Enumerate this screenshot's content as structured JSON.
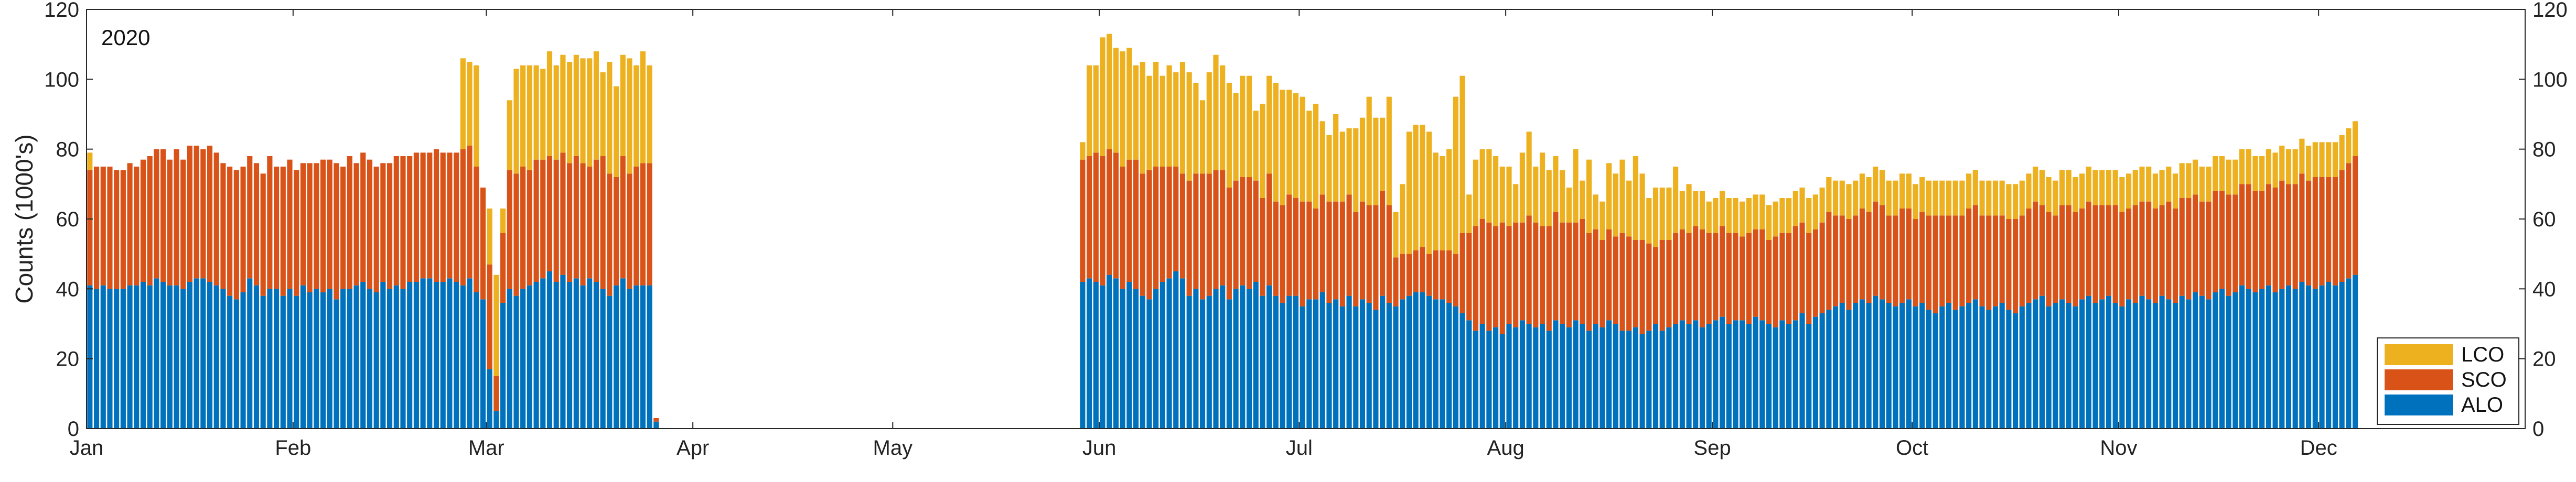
{
  "chart_data": {
    "type": "bar",
    "stacked": true,
    "year_label": "2020",
    "ylabel": "Counts (1000's)",
    "ylim": [
      0,
      120
    ],
    "yticks": [
      0,
      20,
      40,
      60,
      80,
      100,
      120
    ],
    "ytick_labels": [
      "0",
      "20",
      "40",
      "60",
      "80",
      "100",
      "120"
    ],
    "right_axis_ticks": true,
    "grid": false,
    "legend": "bottom-right",
    "months": [
      "Jan",
      "Feb",
      "Mar",
      "Apr",
      "May",
      "Jun",
      "Jul",
      "Aug",
      "Sep",
      "Oct",
      "Nov",
      "Dec"
    ],
    "month_start_day": [
      1,
      32,
      61,
      92,
      122,
      153,
      183,
      214,
      245,
      275,
      306,
      336
    ],
    "num_days": 366,
    "colors": {
      "ALO": "#0072BD",
      "SCO": "#D95319",
      "LCO": "#EDB120"
    },
    "series": [
      {
        "name": "ALO",
        "segments": [
          {
            "start_day": 1,
            "values": [
              41,
              40,
              41,
              40,
              40,
              40,
              41,
              41,
              42,
              41,
              43,
              42,
              41,
              41,
              40,
              42,
              43,
              43,
              42,
              41,
              40,
              38,
              37,
              39,
              43,
              41,
              38,
              40,
              40,
              38,
              40,
              38,
              41,
              39,
              40,
              39,
              40,
              37,
              40,
              40,
              41,
              42,
              40,
              39,
              42,
              40,
              41,
              40,
              42,
              42,
              43,
              43,
              42,
              42,
              43,
              42,
              41,
              43,
              39,
              37,
              17,
              5,
              36,
              40,
              38,
              40,
              41,
              42,
              43,
              45,
              42,
              44,
              42,
              43,
              41,
              43,
              42,
              40,
              38,
              41,
              43,
              40,
              41,
              41,
              41,
              2
            ]
          },
          {
            "start_day": 150,
            "values": [
              42,
              43,
              42,
              41,
              44,
              43,
              40,
              42,
              40,
              38,
              37,
              40,
              42,
              43,
              45,
              43,
              38,
              40,
              37,
              38,
              40,
              41,
              37,
              40,
              41,
              40,
              42,
              38,
              41,
              38,
              36,
              38,
              38,
              35,
              37,
              37,
              39,
              36,
              37,
              35,
              38,
              35,
              37,
              36,
              34,
              38,
              36,
              35,
              37,
              38,
              39,
              39,
              38,
              37,
              37,
              36,
              35,
              33,
              31,
              28,
              30,
              28,
              29,
              27,
              30,
              29,
              31,
              30,
              29,
              30,
              28,
              31,
              30,
              29,
              31,
              30,
              28,
              30,
              29,
              31,
              30,
              28,
              28,
              29,
              27,
              28,
              30,
              28,
              29,
              30,
              31,
              30,
              31,
              29,
              30,
              31,
              32,
              30,
              31,
              31,
              30,
              32,
              31,
              30,
              29,
              31,
              30,
              31,
              33,
              30,
              32,
              33,
              34,
              35,
              36,
              34,
              36,
              37,
              36,
              38,
              37,
              36,
              35,
              36,
              37,
              35,
              36,
              34,
              33,
              35,
              36,
              34,
              35,
              36,
              37,
              35,
              34,
              35,
              36,
              34,
              33,
              35,
              36,
              37,
              38,
              35,
              36,
              37,
              36,
              35,
              37,
              38,
              36,
              37,
              38,
              36,
              35,
              37,
              36,
              38,
              37,
              36,
              38,
              37,
              36,
              38,
              37,
              39,
              38,
              37,
              39,
              40,
              38,
              39,
              41,
              40,
              39,
              40,
              41,
              39,
              40,
              41,
              40,
              42,
              41,
              40,
              41,
              42,
              41,
              42,
              43,
              44
            ]
          }
        ]
      },
      {
        "name": "SCO",
        "segments": [
          {
            "start_day": 1,
            "values": [
              33,
              35,
              34,
              35,
              34,
              34,
              35,
              34,
              35,
              37,
              37,
              38,
              36,
              39,
              37,
              39,
              38,
              37,
              39,
              38,
              36,
              37,
              37,
              36,
              35,
              35,
              35,
              38,
              35,
              37,
              37,
              36,
              35,
              37,
              36,
              38,
              37,
              39,
              35,
              38,
              35,
              37,
              37,
              36,
              34,
              36,
              37,
              38,
              36,
              37,
              36,
              36,
              38,
              37,
              36,
              37,
              39,
              38,
              36,
              32,
              30,
              10,
              20,
              34,
              35,
              35,
              33,
              35,
              34,
              33,
              35,
              35,
              34,
              35,
              35,
              32,
              35,
              38,
              35,
              31,
              35,
              33,
              34,
              35,
              35,
              1
            ]
          },
          {
            "start_day": 150,
            "values": [
              35,
              35,
              37,
              37,
              36,
              36,
              35,
              35,
              37,
              35,
              37,
              35,
              33,
              32,
              30,
              30,
              33,
              33,
              36,
              35,
              34,
              33,
              32,
              31,
              31,
              32,
              29,
              28,
              32,
              27,
              28,
              29,
              28,
              30,
              28,
              26,
              28,
              29,
              28,
              30,
              29,
              27,
              28,
              28,
              30,
              30,
              28,
              14,
              13,
              12,
              12,
              13,
              12,
              14,
              14,
              15,
              15,
              23,
              25,
              30,
              30,
              31,
              29,
              32,
              28,
              30,
              28,
              31,
              30,
              28,
              30,
              31,
              29,
              30,
              28,
              30,
              28,
              27,
              25,
              26,
              25,
              28,
              27,
              25,
              27,
              25,
              22,
              26,
              25,
              26,
              26,
              26,
              27,
              28,
              26,
              25,
              26,
              26,
              25,
              24,
              26,
              25,
              26,
              24,
              26,
              25,
              26,
              27,
              26,
              26,
              25,
              26,
              28,
              26,
              25,
              26,
              25,
              26,
              26,
              27,
              27,
              25,
              26,
              27,
              26,
              25,
              26,
              27,
              28,
              26,
              25,
              27,
              26,
              27,
              27,
              26,
              27,
              26,
              25,
              26,
              27,
              26,
              27,
              28,
              26,
              27,
              25,
              27,
              28,
              27,
              26,
              27,
              28,
              27,
              26,
              28,
              27,
              26,
              28,
              27,
              28,
              27,
              26,
              28,
              27,
              28,
              29,
              28,
              27,
              28,
              29,
              28,
              29,
              28,
              29,
              30,
              29,
              28,
              29,
              30,
              31,
              29,
              30,
              31,
              30,
              32,
              31,
              30,
              31,
              32,
              33,
              34
            ]
          }
        ]
      },
      {
        "name": "LCO",
        "segments": [
          {
            "start_day": 1,
            "values": [
              5,
              0,
              0,
              0,
              0,
              0,
              0,
              0,
              0,
              0,
              0,
              0,
              0,
              0,
              0,
              0,
              0,
              0,
              0,
              0,
              0,
              0,
              0,
              0,
              0,
              0,
              0,
              0,
              0,
              0,
              0,
              0,
              0,
              0,
              0,
              0,
              0,
              0,
              0,
              0,
              0,
              0,
              0,
              0,
              0,
              0,
              0,
              0,
              0,
              0,
              0,
              0,
              0,
              0,
              0,
              0,
              26,
              24,
              29,
              0,
              16,
              29,
              7,
              20,
              30,
              29,
              30,
              27,
              26,
              30,
              27,
              28,
              29,
              29,
              30,
              31,
              31,
              24,
              32,
              26,
              29,
              33,
              29,
              32,
              28,
              0
            ]
          },
          {
            "start_day": 150,
            "values": [
              5,
              26,
              25,
              34,
              33,
              30,
              33,
              32,
              27,
              32,
              27,
              30,
              26,
              29,
              27,
              32,
              31,
              26,
              21,
              29,
              33,
              30,
              30,
              25,
              29,
              29,
              20,
              27,
              28,
              34,
              33,
              30,
              30,
              30,
              26,
              30,
              21,
              19,
              25,
              20,
              19,
              24,
              24,
              31,
              25,
              21,
              31,
              13,
              20,
              35,
              36,
              35,
              35,
              28,
              27,
              29,
              45,
              45,
              11,
              19,
              20,
              21,
              20,
              16,
              17,
              11,
              20,
              24,
              16,
              21,
              16,
              16,
              15,
              10,
              21,
              11,
              21,
              10,
              11,
              19,
              18,
              21,
              16,
              24,
              19,
              13,
              17,
              15,
              15,
              19,
              11,
              14,
              10,
              11,
              9,
              10,
              10,
              10,
              10,
              10,
              10,
              10,
              10,
              10,
              10,
              10,
              10,
              10,
              10,
              10,
              10,
              10,
              10,
              10,
              10,
              10,
              10,
              10,
              10,
              10,
              10,
              10,
              10,
              10,
              10,
              10,
              10,
              10,
              10,
              10,
              10,
              10,
              10,
              10,
              10,
              10,
              10,
              10,
              10,
              10,
              10,
              10,
              10,
              10,
              10,
              10,
              10,
              10,
              10,
              10,
              10,
              10,
              10,
              10,
              10,
              10,
              10,
              10,
              10,
              10,
              10,
              10,
              10,
              10,
              10,
              10,
              10,
              10,
              10,
              10,
              10,
              10,
              10,
              10,
              10,
              10,
              10,
              10,
              10,
              10,
              10,
              10,
              10,
              10,
              10,
              10,
              10,
              10,
              10,
              10,
              10,
              10
            ]
          }
        ]
      }
    ],
    "legend_entries": [
      "LCO",
      "SCO",
      "ALO"
    ]
  }
}
